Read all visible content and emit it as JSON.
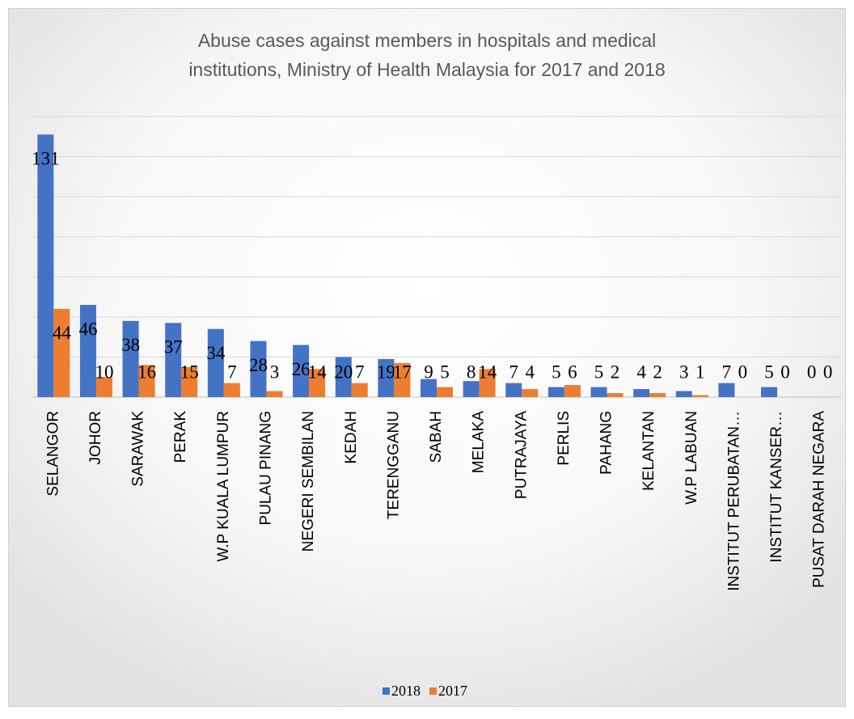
{
  "chart_data": {
    "type": "bar",
    "title": [
      "Abuse cases against members in hospitals and medical",
      "institutions, Ministry of Health Malaysia for 2017 and 2018"
    ],
    "categories": [
      "SELANGOR",
      "JOHOR",
      "SARAWAK",
      "PERAK",
      "W.P KUALA LUMPUR",
      "PULAU PINANG",
      "NEGERI SEMBILAN",
      "KEDAH",
      "TERENGGANU",
      "SABAH",
      "MELAKA",
      "PUTRAJAYA",
      "PERLIS",
      "PAHANG",
      "KELANTAN",
      "W.P LABUAN",
      "INSTITUT PERUBATAN…",
      "INSTITUT KANSER…",
      "PUSAT DARAH NEGARA"
    ],
    "series": [
      {
        "name": "2018",
        "color": "#4472c4",
        "values": [
          131,
          46,
          38,
          37,
          34,
          28,
          26,
          20,
          19,
          9,
          8,
          7,
          5,
          5,
          4,
          3,
          7,
          5,
          0
        ]
      },
      {
        "name": "2017",
        "color": "#ed7d31",
        "values": [
          44,
          10,
          16,
          15,
          7,
          3,
          14,
          7,
          17,
          5,
          14,
          4,
          6,
          2,
          2,
          1,
          0,
          0,
          0
        ]
      }
    ],
    "ylim": [
      0,
      140
    ],
    "yticks": [
      0,
      20,
      40,
      60,
      80,
      100,
      120,
      140
    ],
    "grid": true,
    "legend": "bottom"
  }
}
